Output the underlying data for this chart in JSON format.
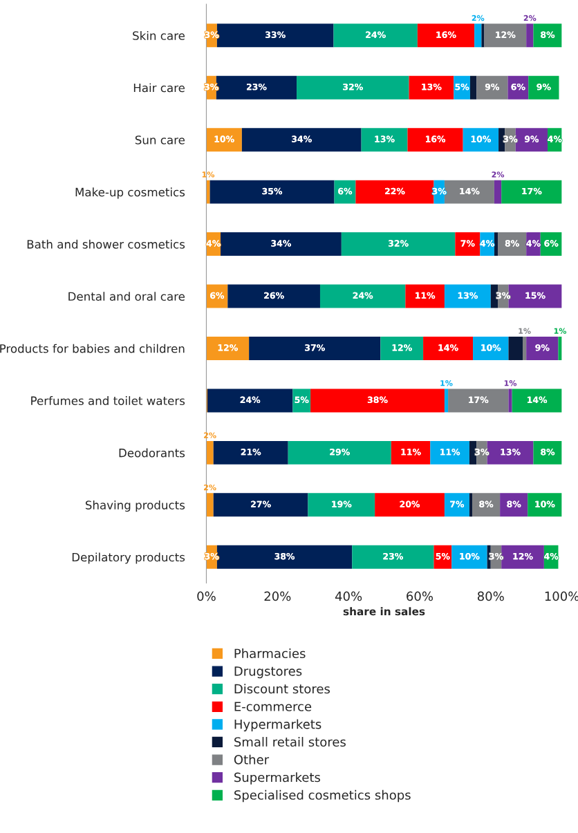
{
  "chart_data": {
    "type": "bar",
    "orientation": "horizontal",
    "stacked": true,
    "xlabel": "share in sales",
    "categories": [
      "Skin care",
      "Hair care",
      "Sun care",
      "Make-up cosmetics",
      "Bath and shower cosmetics",
      "Dental and oral care",
      "Products for babies and children",
      "Perfumes and toilet waters",
      "Deodorants",
      "Shaving products",
      "Depilatory products"
    ],
    "xlim": [
      0,
      100
    ],
    "xticks": [
      {
        "value": 0,
        "label": "0%"
      },
      {
        "value": 20,
        "label": "20%"
      },
      {
        "value": 40,
        "label": "40%"
      },
      {
        "value": 60,
        "label": "60%"
      },
      {
        "value": 80,
        "label": "80%"
      },
      {
        "value": 100,
        "label": "100%"
      }
    ],
    "grid": false,
    "legend": "bottom",
    "marker": "square",
    "series": [
      {
        "name": "Pharmacies",
        "color": "#f7981d",
        "values": [
          3,
          2.8,
          10,
          1,
          4,
          6,
          12,
          0.3,
          2,
          2,
          3
        ],
        "value_labels": [
          "3%",
          "3%",
          "10%",
          "1%",
          "4%",
          "6%",
          "12%",
          null,
          "2%",
          "2%",
          "3%"
        ]
      },
      {
        "name": "Drugstores",
        "color": "#002157",
        "values": [
          32.8,
          22.6,
          33.6,
          35,
          34,
          26,
          37,
          24,
          21,
          26.6,
          38
        ],
        "value_labels": [
          "33%",
          "23%",
          "34%",
          "35%",
          "34%",
          "26%",
          "37%",
          "24%",
          "21%",
          "27%",
          "38%"
        ]
      },
      {
        "name": "Discount stores",
        "color": "#00b086",
        "values": [
          23.6,
          31.6,
          13,
          6,
          32,
          24,
          12,
          5,
          29,
          18.8,
          23
        ],
        "value_labels": [
          "24%",
          "32%",
          "13%",
          "6%",
          "32%",
          "24%",
          "12%",
          "5%",
          "29%",
          "19%",
          "23%"
        ]
      },
      {
        "name": "E-commerce",
        "color": "#ff0000",
        "values": [
          16,
          12.6,
          15.6,
          22,
          7,
          11,
          14,
          37.7,
          11,
          19.6,
          5
        ],
        "value_labels": [
          "16%",
          "13%",
          "16%",
          "22%",
          "7%",
          "11%",
          "14%",
          "38%",
          "11%",
          "20%",
          "5%"
        ]
      },
      {
        "name": "Hypermarkets",
        "color": "#00aeef",
        "values": [
          2,
          4.6,
          10,
          3,
          4,
          13,
          10,
          1,
          11,
          7,
          10
        ],
        "value_labels": [
          "2%",
          "5%",
          "10%",
          "3%",
          "4%",
          "13%",
          "10%",
          "1%",
          "11%",
          "7%",
          "10%"
        ]
      },
      {
        "name": "Small retail stores",
        "color": "#0a1a3a",
        "values": [
          0.8,
          1.8,
          1.8,
          0,
          1,
          2,
          4,
          0,
          2,
          0.8,
          1
        ],
        "value_labels": [
          null,
          null,
          null,
          null,
          null,
          null,
          null,
          null,
          null,
          null,
          null
        ]
      },
      {
        "name": "Other",
        "color": "#7f8184",
        "values": [
          11.8,
          8.8,
          3,
          14,
          8,
          3,
          1,
          17,
          3,
          7.8,
          3
        ],
        "value_labels": [
          "12%",
          "9%",
          "3%",
          "14%",
          "8%",
          "3%",
          "1%",
          "17%",
          "3%",
          "8%",
          "3%"
        ]
      },
      {
        "name": "Supermarkets",
        "color": "#7030a0",
        "values": [
          2,
          5.8,
          9,
          2,
          4,
          15,
          9,
          1,
          13,
          7.8,
          12
        ],
        "value_labels": [
          "2%",
          "6%",
          "9%",
          "2%",
          "4%",
          "15%",
          "9%",
          "1%",
          "13%",
          "8%",
          "12%"
        ]
      },
      {
        "name": "Specialised cosmetics shops",
        "color": "#00b04f",
        "values": [
          8,
          8.6,
          4,
          17,
          6,
          0,
          1,
          14,
          8,
          9.6,
          4
        ],
        "value_labels": [
          "8%",
          "9%",
          "4%",
          "17%",
          "6%",
          null,
          "1%",
          "14%",
          "8%",
          "10%",
          "4%"
        ]
      }
    ]
  }
}
